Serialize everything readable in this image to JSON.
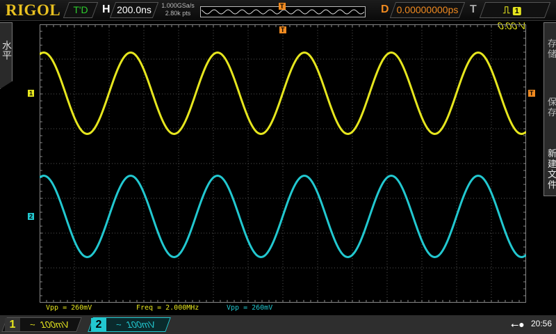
{
  "header": {
    "logo": "RIGOL",
    "run_state": "T'D",
    "horizontal_label": "H",
    "timebase": "200.0ns",
    "sample_rate": "1.000GSa/s",
    "memory_depth": "2.80k pts",
    "delay_label": "D",
    "delay": "0.00000000ps",
    "trigger_label": "T",
    "trigger_source": "1",
    "trigger_level": "0.00 V",
    "trigger_slope_icon": "rising-edge-icon"
  },
  "left_menu": {
    "label": "水平"
  },
  "right_menu": {
    "items": [
      {
        "label": "存储"
      },
      {
        "label": "保存"
      },
      {
        "label": "新建文件"
      }
    ]
  },
  "markers": {
    "ch1": "1",
    "ch2": "2",
    "trigger_pos": "T",
    "trigger_level": "T"
  },
  "measurements": {
    "ch1_vpp": "Vpp = 260mV",
    "freq": "Freq = 2.000MHz",
    "ch2_vpp": "Vpp = 260mV"
  },
  "channels": [
    {
      "number": "1",
      "coupling_icon": "~",
      "scale": "100mV",
      "color": "#e6e61e",
      "vpp_mV": 260,
      "freq_MHz": 2.0
    },
    {
      "number": "2",
      "coupling_icon": "~",
      "scale": "100mV",
      "color": "#22c8d0",
      "vpp_mV": 260,
      "freq_MHz": 2.0
    }
  ],
  "status": {
    "usb_icon": "usb-icon",
    "time": "20:56"
  }
}
